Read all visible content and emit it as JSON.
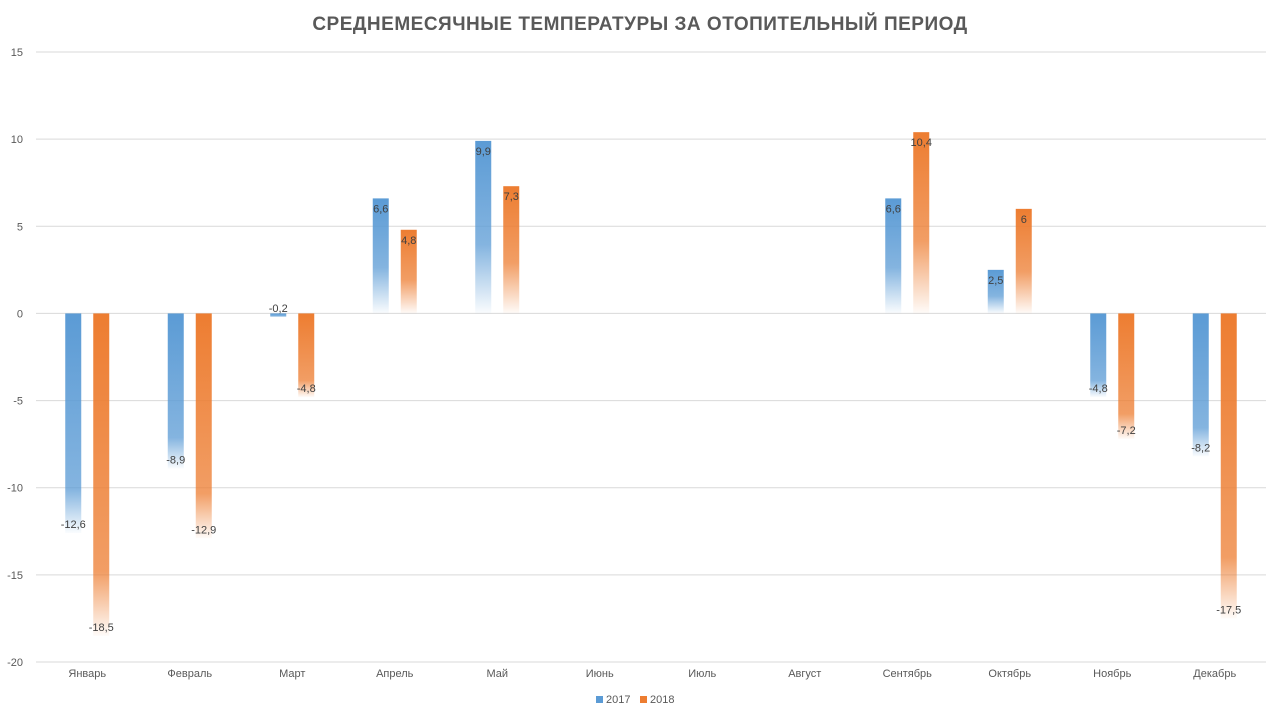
{
  "chart_data": {
    "type": "bar",
    "title": "СРЕДНЕМЕСЯЧНЫЕ ТЕМПЕРАТУРЫ ЗА ОТОПИТЕЛЬНЫЙ ПЕРИОД",
    "xlabel": "",
    "ylabel": "",
    "categories": [
      "Январь",
      "Февраль",
      "Март",
      "Апрель",
      "Май",
      "Июнь",
      "Июль",
      "Август",
      "Сентябрь",
      "Октябрь",
      "Ноябрь",
      "Декабрь"
    ],
    "series": [
      {
        "name": "2017",
        "color": "#5b9bd5",
        "values": [
          -12.6,
          -8.9,
          -0.2,
          6.6,
          9.9,
          null,
          null,
          null,
          6.6,
          2.5,
          -4.8,
          -8.2
        ],
        "labels": [
          "-12,6",
          "-8,9",
          "-0,2",
          "6,6",
          "9,9",
          "",
          "",
          "",
          "6,6",
          "2,5",
          "-4,8",
          "-8,2"
        ]
      },
      {
        "name": "2018",
        "color": "#ed7d31",
        "values": [
          -18.5,
          -12.9,
          -4.8,
          4.8,
          7.3,
          null,
          null,
          null,
          10.4,
          6,
          -7.2,
          -17.5
        ],
        "labels": [
          "-18,5",
          "-12,9",
          "-4,8",
          "4,8",
          "7,3",
          "",
          "",
          "",
          "10,4",
          "6",
          "-7,2",
          "-17,5"
        ]
      }
    ],
    "ylim": [
      -20,
      15
    ],
    "yticks": [
      15,
      10,
      5,
      0,
      -5,
      -10,
      -15,
      -20
    ],
    "grid": true,
    "legend": "bottom-center"
  }
}
